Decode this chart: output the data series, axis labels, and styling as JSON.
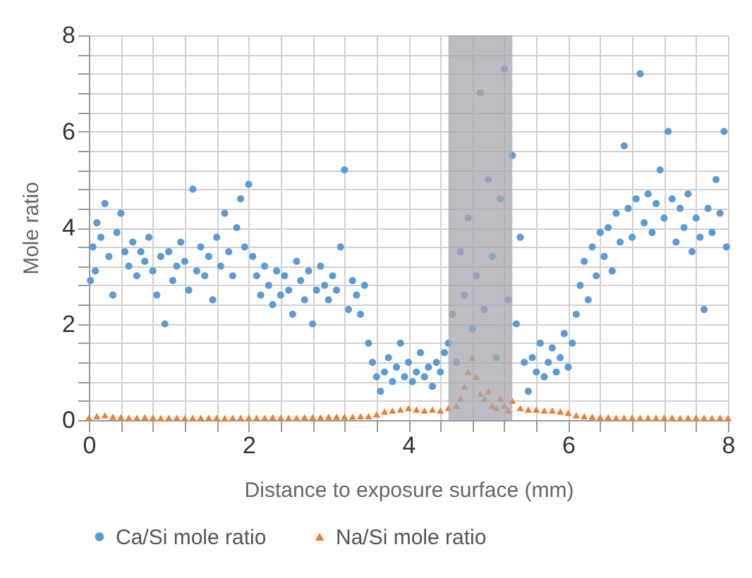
{
  "chart_data": {
    "type": "scatter",
    "xlabel": "Distance to exposure surface (mm)",
    "ylabel": "Mole ratio",
    "xlim": [
      0,
      8
    ],
    "ylim": [
      0,
      8
    ],
    "xticks": [
      0,
      {
        "value": 0.4,
        "label": null
      },
      {
        "value": 0.8,
        "label": null
      },
      {
        "value": 1.2,
        "label": null
      },
      {
        "value": 1.6,
        "label": null
      },
      2,
      {
        "value": 2.4,
        "label": null
      },
      {
        "value": 2.8,
        "label": null
      },
      {
        "value": 3.2,
        "label": null
      },
      {
        "value": 3.6,
        "label": null
      },
      4,
      {
        "value": 4.4,
        "label": null
      },
      {
        "value": 4.8,
        "label": null
      },
      {
        "value": 5.2,
        "label": null
      },
      {
        "value": 5.6,
        "label": null
      },
      6,
      {
        "value": 6.4,
        "label": null
      },
      {
        "value": 6.8,
        "label": null
      },
      {
        "value": 7.2,
        "label": null
      },
      {
        "value": 7.6,
        "label": null
      },
      8
    ],
    "yticks": [
      0,
      {
        "value": 0.4,
        "label": null
      },
      {
        "value": 0.8,
        "label": null
      },
      {
        "value": 1.2,
        "label": null
      },
      {
        "value": 1.6,
        "label": null
      },
      2,
      {
        "value": 2.4,
        "label": null
      },
      {
        "value": 2.8,
        "label": null
      },
      {
        "value": 3.2,
        "label": null
      },
      {
        "value": 3.6,
        "label": null
      },
      4,
      {
        "value": 4.4,
        "label": null
      },
      {
        "value": 4.8,
        "label": null
      },
      {
        "value": 5.2,
        "label": null
      },
      {
        "value": 5.6,
        "label": null
      },
      6,
      {
        "value": 6.4,
        "label": null
      },
      {
        "value": 6.8,
        "label": null
      },
      {
        "value": 7.2,
        "label": null
      },
      {
        "value": 7.6,
        "label": null
      },
      8
    ],
    "grid": true,
    "legend": "bottom",
    "bands": [
      {
        "axis": "x",
        "from": 4.5,
        "to": 5.3,
        "color": "#a6a6ae"
      }
    ],
    "series": [
      {
        "name": "Ca/Si mole ratio",
        "type": "scatter",
        "marker": "circle",
        "color": "#5b9bd5",
        "x": [
          0.02,
          0.05,
          0.08,
          0.1,
          0.15,
          0.2,
          0.25,
          0.3,
          0.35,
          0.4,
          0.45,
          0.5,
          0.55,
          0.6,
          0.65,
          0.7,
          0.75,
          0.8,
          0.85,
          0.9,
          0.95,
          1.0,
          1.05,
          1.1,
          1.15,
          1.2,
          1.25,
          1.3,
          1.35,
          1.4,
          1.45,
          1.5,
          1.55,
          1.6,
          1.65,
          1.7,
          1.75,
          1.8,
          1.85,
          1.9,
          1.95,
          2.0,
          2.05,
          2.1,
          2.15,
          2.2,
          2.25,
          2.3,
          2.35,
          2.4,
          2.45,
          2.5,
          2.55,
          2.6,
          2.65,
          2.7,
          2.75,
          2.8,
          2.85,
          2.9,
          2.95,
          3.0,
          3.05,
          3.1,
          3.15,
          3.2,
          3.25,
          3.3,
          3.35,
          3.4,
          3.45,
          3.5,
          3.55,
          3.6,
          3.65,
          3.7,
          3.75,
          3.8,
          3.85,
          3.9,
          3.95,
          4.0,
          4.05,
          4.1,
          4.15,
          4.2,
          4.25,
          4.3,
          4.35,
          4.4,
          4.45,
          4.5,
          4.55,
          4.6,
          4.65,
          4.7,
          4.75,
          4.8,
          4.85,
          4.9,
          4.95,
          5.0,
          5.05,
          5.1,
          5.15,
          5.2,
          5.25,
          5.3,
          5.35,
          5.4,
          5.45,
          5.5,
          5.55,
          5.6,
          5.65,
          5.7,
          5.75,
          5.8,
          5.85,
          5.9,
          5.95,
          6.0,
          6.05,
          6.1,
          6.15,
          6.2,
          6.25,
          6.3,
          6.35,
          6.4,
          6.45,
          6.5,
          6.55,
          6.6,
          6.65,
          6.7,
          6.75,
          6.8,
          6.85,
          6.9,
          6.95,
          7.0,
          7.05,
          7.1,
          7.15,
          7.2,
          7.25,
          7.3,
          7.35,
          7.4,
          7.45,
          7.5,
          7.55,
          7.6,
          7.65,
          7.7,
          7.75,
          7.8,
          7.85,
          7.9,
          7.95,
          7.98
        ],
        "values": [
          2.9,
          3.6,
          3.1,
          4.1,
          3.8,
          4.5,
          3.4,
          2.6,
          3.9,
          4.3,
          3.5,
          3.2,
          3.7,
          3.0,
          3.5,
          3.3,
          3.8,
          3.1,
          2.6,
          3.4,
          2.0,
          3.5,
          2.9,
          3.2,
          3.7,
          3.3,
          2.7,
          4.8,
          3.1,
          3.6,
          3.0,
          3.4,
          2.5,
          3.8,
          3.2,
          4.3,
          3.5,
          3.0,
          4.0,
          4.6,
          3.6,
          4.9,
          3.4,
          3.0,
          2.6,
          3.2,
          2.8,
          2.4,
          3.1,
          2.6,
          3.0,
          2.7,
          2.2,
          3.3,
          2.9,
          2.5,
          3.1,
          2.0,
          2.7,
          3.2,
          2.8,
          2.5,
          3.0,
          2.7,
          3.6,
          5.2,
          2.3,
          2.9,
          2.6,
          2.2,
          2.8,
          1.6,
          1.2,
          0.9,
          0.6,
          1.0,
          1.3,
          0.8,
          1.1,
          1.6,
          0.9,
          1.2,
          0.8,
          1.0,
          1.4,
          0.9,
          1.1,
          0.7,
          1.2,
          1.0,
          1.4,
          1.6,
          2.2,
          1.2,
          3.5,
          2.6,
          4.2,
          1.9,
          3.0,
          6.8,
          2.3,
          5.0,
          3.4,
          1.3,
          4.6,
          7.3,
          2.5,
          5.5,
          2.0,
          3.8,
          1.2,
          0.6,
          1.3,
          1.0,
          1.6,
          0.9,
          1.2,
          1.5,
          1.0,
          1.3,
          1.8,
          1.1,
          1.6,
          2.2,
          2.8,
          3.3,
          2.5,
          3.6,
          3.0,
          3.9,
          3.4,
          4.0,
          3.1,
          4.3,
          3.7,
          5.7,
          4.4,
          3.8,
          4.6,
          7.2,
          4.1,
          4.7,
          3.9,
          4.5,
          5.2,
          4.2,
          6.0,
          4.6,
          3.7,
          4.4,
          4.0,
          4.7,
          3.5,
          4.2,
          3.8,
          2.3,
          4.4,
          3.9,
          5.0,
          4.3,
          6.0,
          3.6
        ]
      },
      {
        "name": "Na/Si mole ratio",
        "type": "scatter",
        "marker": "triangle",
        "color": "#ed7d31",
        "x": [
          0,
          0.1,
          0.2,
          0.3,
          0.4,
          0.5,
          0.6,
          0.7,
          0.8,
          0.9,
          1.0,
          1.1,
          1.2,
          1.3,
          1.4,
          1.5,
          1.6,
          1.7,
          1.8,
          1.9,
          2.0,
          2.1,
          2.2,
          2.3,
          2.4,
          2.5,
          2.6,
          2.7,
          2.8,
          2.9,
          3.0,
          3.1,
          3.2,
          3.3,
          3.4,
          3.5,
          3.6,
          3.7,
          3.8,
          3.9,
          4.0,
          4.1,
          4.2,
          4.3,
          4.4,
          4.5,
          4.6,
          4.65,
          4.7,
          4.75,
          4.8,
          4.85,
          4.9,
          4.95,
          5.0,
          5.05,
          5.1,
          5.15,
          5.2,
          5.25,
          5.3,
          5.4,
          5.5,
          5.6,
          5.7,
          5.8,
          5.9,
          6.0,
          6.1,
          6.2,
          6.3,
          6.4,
          6.5,
          6.6,
          6.7,
          6.8,
          6.9,
          7.0,
          7.1,
          7.2,
          7.3,
          7.4,
          7.5,
          7.6,
          7.7,
          7.8,
          7.9,
          8.0
        ],
        "values": [
          0.05,
          0.08,
          0.1,
          0.07,
          0.06,
          0.05,
          0.05,
          0.06,
          0.05,
          0.04,
          0.05,
          0.05,
          0.04,
          0.05,
          0.05,
          0.05,
          0.05,
          0.04,
          0.05,
          0.05,
          0.05,
          0.05,
          0.05,
          0.06,
          0.05,
          0.05,
          0.05,
          0.06,
          0.06,
          0.06,
          0.07,
          0.07,
          0.07,
          0.07,
          0.08,
          0.08,
          0.12,
          0.18,
          0.2,
          0.22,
          0.25,
          0.22,
          0.2,
          0.22,
          0.2,
          0.25,
          0.3,
          0.45,
          0.7,
          1.0,
          1.3,
          0.9,
          0.55,
          0.45,
          0.6,
          0.3,
          0.25,
          0.45,
          0.3,
          0.2,
          0.4,
          0.25,
          0.22,
          0.22,
          0.2,
          0.2,
          0.18,
          0.15,
          0.1,
          0.08,
          0.07,
          0.06,
          0.06,
          0.05,
          0.05,
          0.05,
          0.05,
          0.05,
          0.05,
          0.05,
          0.05,
          0.04,
          0.05,
          0.05,
          0.05,
          0.04,
          0.05,
          0.04
        ]
      }
    ]
  }
}
